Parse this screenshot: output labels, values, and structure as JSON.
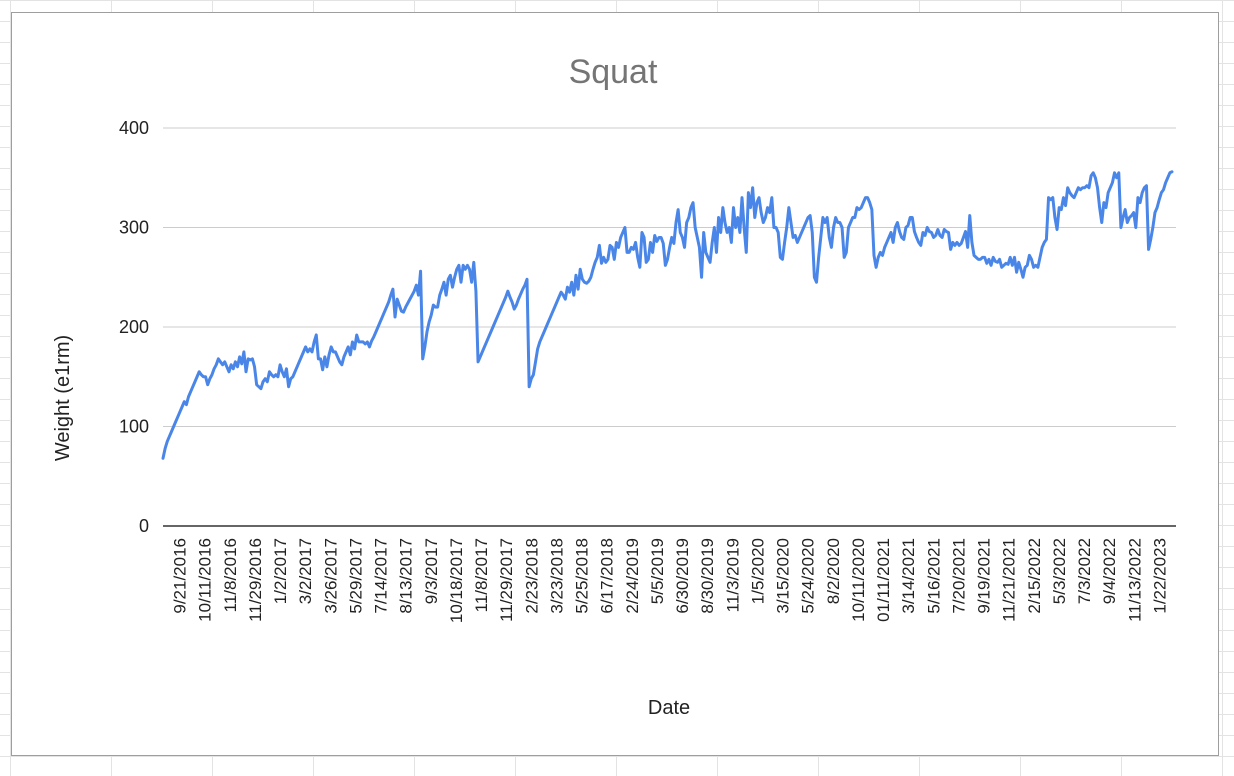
{
  "chart_data": {
    "type": "line",
    "title": "Squat",
    "xlabel": "Date",
    "ylabel": "Weight (e1rm)",
    "ylim": [
      0,
      400
    ],
    "yticks": [
      0,
      100,
      200,
      300,
      400
    ],
    "grid": true,
    "legend": "none",
    "line_color": "#4a86e8",
    "x_tick_labels": [
      "9/21/2016",
      "10/11/2016",
      "11/8/2016",
      "11/29/2016",
      "1/2/2017",
      "3/2/2017",
      "3/26/2017",
      "5/29/2017",
      "7/14/2017",
      "8/13/2017",
      "9/3/2017",
      "10/18/2017",
      "11/8/2017",
      "11/29/2017",
      "2/23/2018",
      "3/23/2018",
      "5/25/2018",
      "6/17/2018",
      "2/24/2019",
      "5/5/2019",
      "6/30/2019",
      "8/30/2019",
      "11/3/2019",
      "1/5/2020",
      "3/15/2020",
      "5/24/2020",
      "8/2/2020",
      "10/11/2020",
      "01/11/2021",
      "3/14/2021",
      "5/16/2021",
      "7/20/2021",
      "9/19/2021",
      "11/21/2021",
      "2/15/2022",
      "5/3/2022",
      "7/3/2022",
      "9/4/2022",
      "11/13/2022",
      "1/22/2023"
    ],
    "series": [
      {
        "values": [
          68,
          78,
          85,
          90,
          95,
          100,
          105,
          110,
          115,
          120,
          125,
          122,
          130,
          135,
          140,
          145,
          150,
          155,
          152,
          150,
          150,
          142,
          148,
          152,
          158,
          162,
          168,
          165,
          162,
          165,
          160,
          155,
          162,
          158,
          165,
          160,
          170,
          163,
          175,
          155,
          168,
          167,
          168,
          160,
          142,
          140,
          138,
          145,
          148,
          145,
          155,
          152,
          150,
          152,
          150,
          162,
          155,
          150,
          158,
          140,
          148,
          150,
          155,
          160,
          165,
          170,
          175,
          180,
          175,
          178,
          175,
          185,
          192,
          168,
          168,
          157,
          170,
          160,
          172,
          180,
          175,
          175,
          170,
          165,
          162,
          170,
          175,
          180,
          172,
          185,
          178,
          192,
          185,
          185,
          185,
          183,
          185,
          180,
          186,
          190,
          195,
          200,
          205,
          210,
          215,
          220,
          225,
          232,
          238,
          210,
          228,
          222,
          216,
          215,
          220,
          224,
          228,
          232,
          236,
          242,
          232,
          256,
          168,
          180,
          195,
          205,
          212,
          222,
          220,
          220,
          232,
          238,
          245,
          232,
          248,
          252,
          240,
          250,
          258,
          262,
          245,
          262,
          258,
          262,
          258,
          245,
          265,
          236,
          165,
          170,
          175,
          180,
          185,
          190,
          195,
          200,
          205,
          210,
          215,
          220,
          225,
          230,
          236,
          230,
          225,
          218,
          222,
          228,
          233,
          238,
          242,
          248,
          140,
          148,
          152,
          165,
          178,
          185,
          190,
          195,
          200,
          205,
          210,
          215,
          220,
          225,
          230,
          235,
          232,
          228,
          240,
          235,
          245,
          232,
          252,
          238,
          258,
          248,
          245,
          244,
          246,
          250,
          258,
          265,
          270,
          282,
          264,
          270,
          265,
          268,
          282,
          280,
          268,
          285,
          280,
          290,
          295,
          300,
          275,
          275,
          280,
          278,
          285,
          270,
          260,
          295,
          290,
          265,
          268,
          285,
          275,
          292,
          286,
          290,
          290,
          284,
          262,
          268,
          280,
          290,
          284,
          305,
          318,
          295,
          290,
          280,
          305,
          310,
          320,
          325,
          300,
          290,
          280,
          250,
          295,
          275,
          270,
          265,
          285,
          300,
          275,
          310,
          295,
          320,
          305,
          295,
          300,
          285,
          320,
          300,
          310,
          295,
          330,
          300,
          275,
          335,
          320,
          340,
          310,
          325,
          330,
          315,
          305,
          310,
          320,
          315,
          330,
          300,
          300,
          295,
          270,
          268,
          285,
          300,
          320,
          305,
          290,
          292,
          285,
          290,
          295,
          300,
          305,
          310,
          312,
          295,
          250,
          245,
          270,
          290,
          310,
          305,
          310,
          290,
          280,
          300,
          310,
          305,
          305,
          300,
          270,
          275,
          300,
          305,
          310,
          310,
          320,
          318,
          320,
          325,
          330,
          330,
          325,
          318,
          272,
          260,
          270,
          275,
          272,
          280,
          285,
          290,
          295,
          285,
          300,
          305,
          296,
          290,
          288,
          300,
          302,
          310,
          310,
          296,
          290,
          285,
          282,
          295,
          292,
          300,
          296,
          295,
          290,
          292,
          298,
          292,
          290,
          298,
          296,
          295,
          278,
          285,
          282,
          285,
          282,
          284,
          290,
          296,
          280,
          312,
          285,
          272,
          270,
          268,
          268,
          270,
          270,
          264,
          268,
          262,
          270,
          266,
          265,
          268,
          260,
          262,
          264,
          263,
          270,
          262,
          270,
          255,
          265,
          258,
          250,
          260,
          262,
          272,
          268,
          260,
          262,
          260,
          270,
          280,
          285,
          288,
          330,
          328,
          330,
          310,
          298,
          320,
          318,
          330,
          322,
          340,
          335,
          332,
          330,
          335,
          340,
          338,
          340,
          340,
          342,
          340,
          352,
          355,
          350,
          340,
          320,
          305,
          325,
          320,
          335,
          340,
          345,
          355,
          350,
          355,
          300,
          310,
          318,
          305,
          310,
          312,
          315,
          300,
          330,
          325,
          335,
          340,
          342,
          278,
          288,
          300,
          315,
          320,
          328,
          335,
          338,
          345,
          350,
          355,
          356
        ]
      }
    ]
  }
}
